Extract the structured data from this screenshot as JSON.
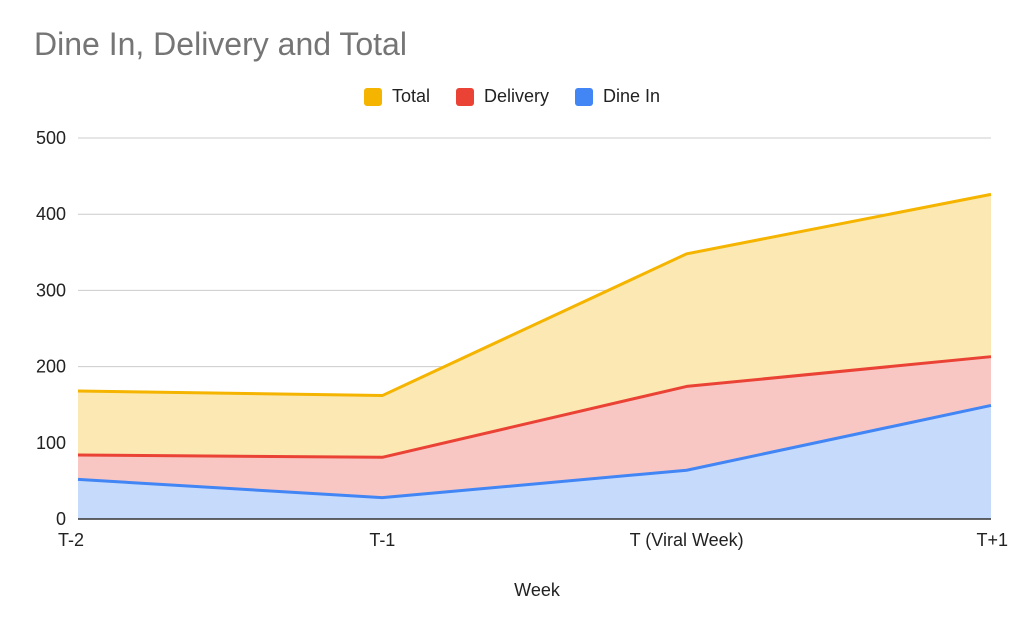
{
  "chart_data": {
    "type": "area",
    "title": "Dine In, Delivery and Total",
    "xlabel": "Week",
    "ylabel": "",
    "categories": [
      "T-2",
      "T-1",
      "T (Viral Week)",
      "T+1"
    ],
    "ylim": [
      0,
      500
    ],
    "yticks": [
      "0",
      "100",
      "200",
      "300",
      "400",
      "500"
    ],
    "grid": true,
    "legend_position": "top",
    "series": [
      {
        "name": "Total",
        "color": "#F4B400",
        "fill": "#FCE8B2",
        "values": [
          168,
          162,
          348,
          426
        ]
      },
      {
        "name": "Delivery",
        "color": "#EA4335",
        "fill": "#F8C7C4",
        "values": [
          84,
          81,
          174,
          213
        ]
      },
      {
        "name": "Dine In",
        "color": "#4285F4",
        "fill": "#C6DAFC",
        "values": [
          52,
          28,
          64,
          149
        ]
      }
    ]
  }
}
